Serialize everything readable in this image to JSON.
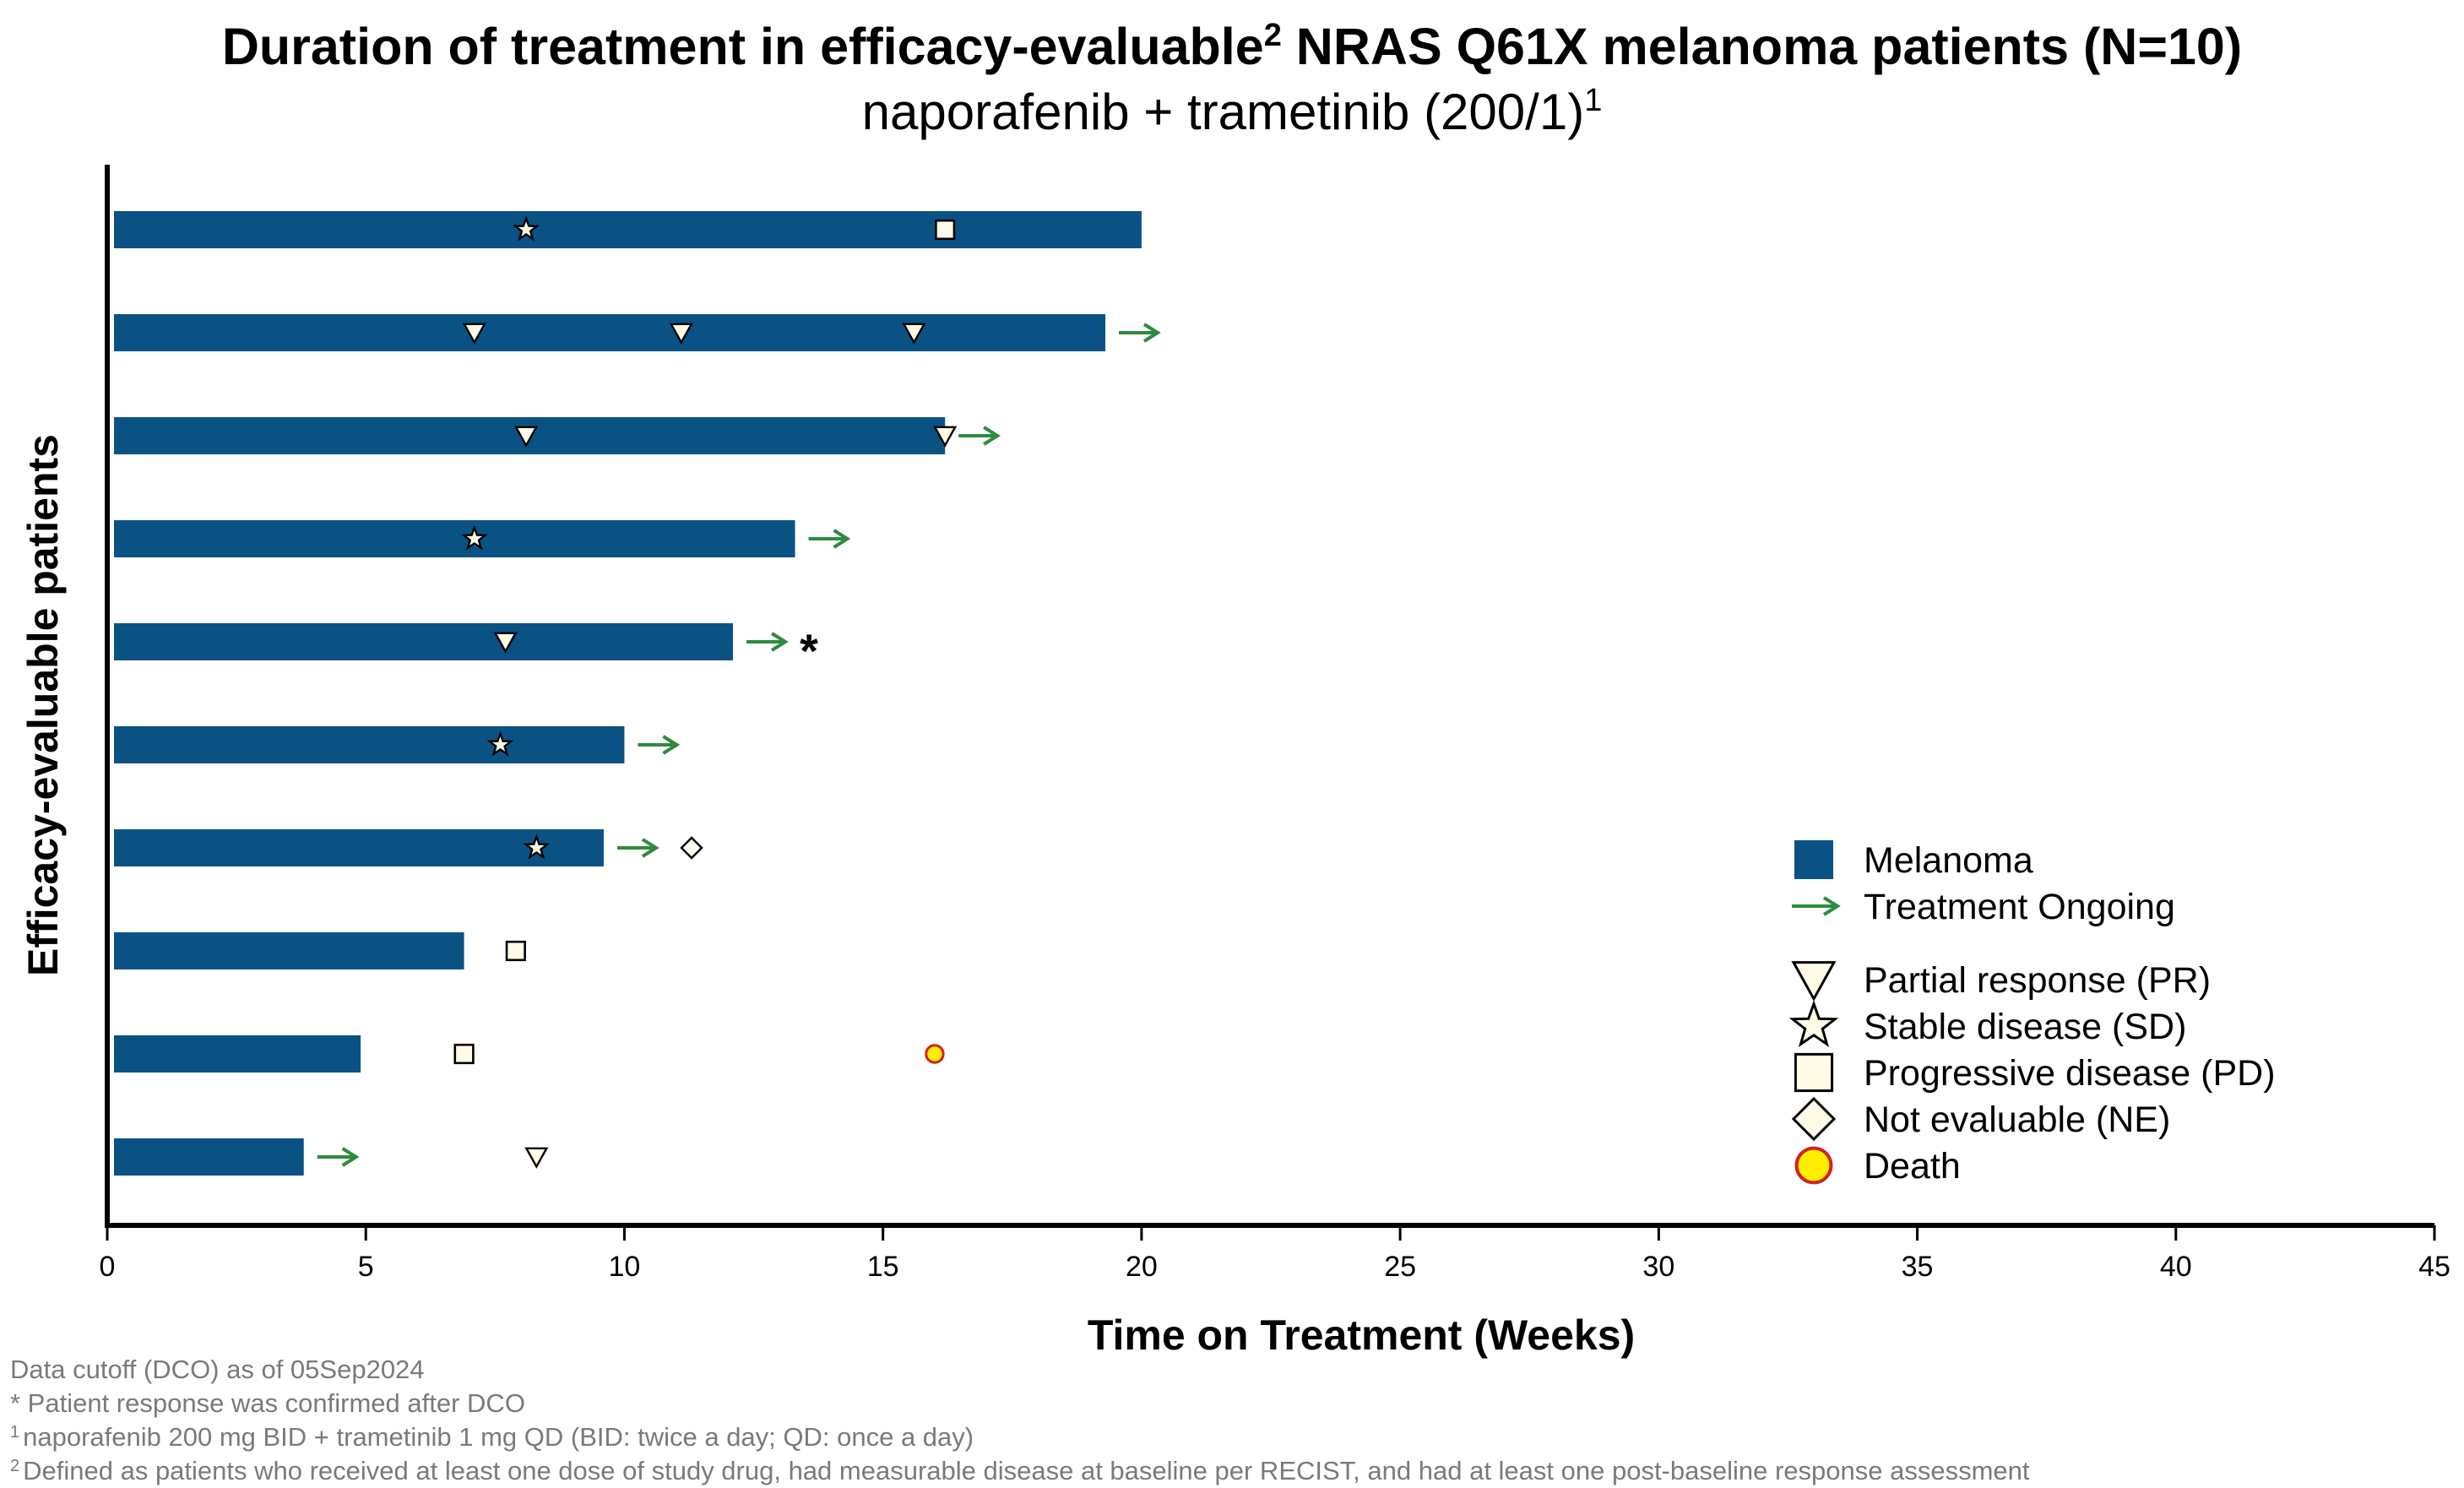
{
  "title": {
    "main": "Duration of treatment in efficacy-evaluable",
    "main_sup": "2",
    "main_rest": "NRAS Q61X melanoma patients (N=10)",
    "subtitle": "naporafenib + trametinib (200/1)",
    "subtitle_sup": "1"
  },
  "colors": {
    "bar": "#0b5284",
    "arrow": "#2e8b3e",
    "marker_fill": "#fffbe6",
    "death_fill": "#ffee00",
    "death_stroke": "#d42020",
    "footnote": "#7a7a7a"
  },
  "chart_data": {
    "type": "bar",
    "orientation": "horizontal",
    "xlabel": "Time on Treatment (Weeks)",
    "ylabel": "Efficacy-evaluable patients",
    "xlim": [
      0,
      45
    ],
    "xticks": [
      "0",
      "5",
      "10",
      "15",
      "20",
      "25",
      "30",
      "35",
      "40",
      "45"
    ],
    "patients": [
      {
        "duration": 20.0,
        "ongoing": false,
        "events": [
          {
            "type": "SD",
            "week": 8.1
          },
          {
            "type": "PD",
            "week": 16.2
          }
        ]
      },
      {
        "duration": 19.3,
        "ongoing": true,
        "events": [
          {
            "type": "PR",
            "week": 7.1
          },
          {
            "type": "PR",
            "week": 11.1
          },
          {
            "type": "PR",
            "week": 15.6
          }
        ]
      },
      {
        "duration": 16.2,
        "ongoing": true,
        "events": [
          {
            "type": "PR",
            "week": 8.1
          },
          {
            "type": "PR",
            "week": 16.2
          }
        ]
      },
      {
        "duration": 13.3,
        "ongoing": true,
        "events": [
          {
            "type": "SD",
            "week": 7.1
          }
        ]
      },
      {
        "duration": 12.1,
        "ongoing": true,
        "confirmed_after_dco": true,
        "events": [
          {
            "type": "PR",
            "week": 7.7
          }
        ]
      },
      {
        "duration": 10.0,
        "ongoing": true,
        "events": [
          {
            "type": "SD",
            "week": 7.6
          }
        ]
      },
      {
        "duration": 9.6,
        "ongoing": true,
        "events": [
          {
            "type": "SD",
            "week": 8.3
          },
          {
            "type": "NE",
            "week": 11.3
          }
        ]
      },
      {
        "duration": 6.9,
        "ongoing": false,
        "events": [
          {
            "type": "PD",
            "week": 7.9
          }
        ]
      },
      {
        "duration": 4.9,
        "ongoing": false,
        "events": [
          {
            "type": "PD",
            "week": 6.9
          },
          {
            "type": "Death",
            "week": 16.0
          }
        ]
      },
      {
        "duration": 3.8,
        "ongoing": true,
        "events": [
          {
            "type": "PR",
            "week": 8.3
          }
        ]
      }
    ],
    "confirmed_marker": "*",
    "legend": {
      "position": "right",
      "entries": [
        {
          "key": "bar",
          "label": "Melanoma"
        },
        {
          "key": "arrow",
          "label": "Treatment Ongoing"
        },
        {
          "key": "PR",
          "label": "Partial response (PR)"
        },
        {
          "key": "SD",
          "label": "Stable disease (SD)"
        },
        {
          "key": "PD",
          "label": "Progressive disease (PD)"
        },
        {
          "key": "NE",
          "label": "Not evaluable (NE)"
        },
        {
          "key": "Death",
          "label": "Death"
        }
      ]
    }
  },
  "footnotes": {
    "dco": "Data cutoff (DCO) as of 05Sep2024",
    "star": "* Patient response was confirmed after DCO",
    "note1_sup": "1",
    "note1": "naporafenib 200 mg BID + trametinib 1 mg QD (BID: twice a day; QD: once a day)",
    "note2_sup": "2",
    "note2": "Defined as patients who received at least one dose of study drug, had measurable disease at baseline per RECIST, and had at least one post-baseline response assessment"
  }
}
